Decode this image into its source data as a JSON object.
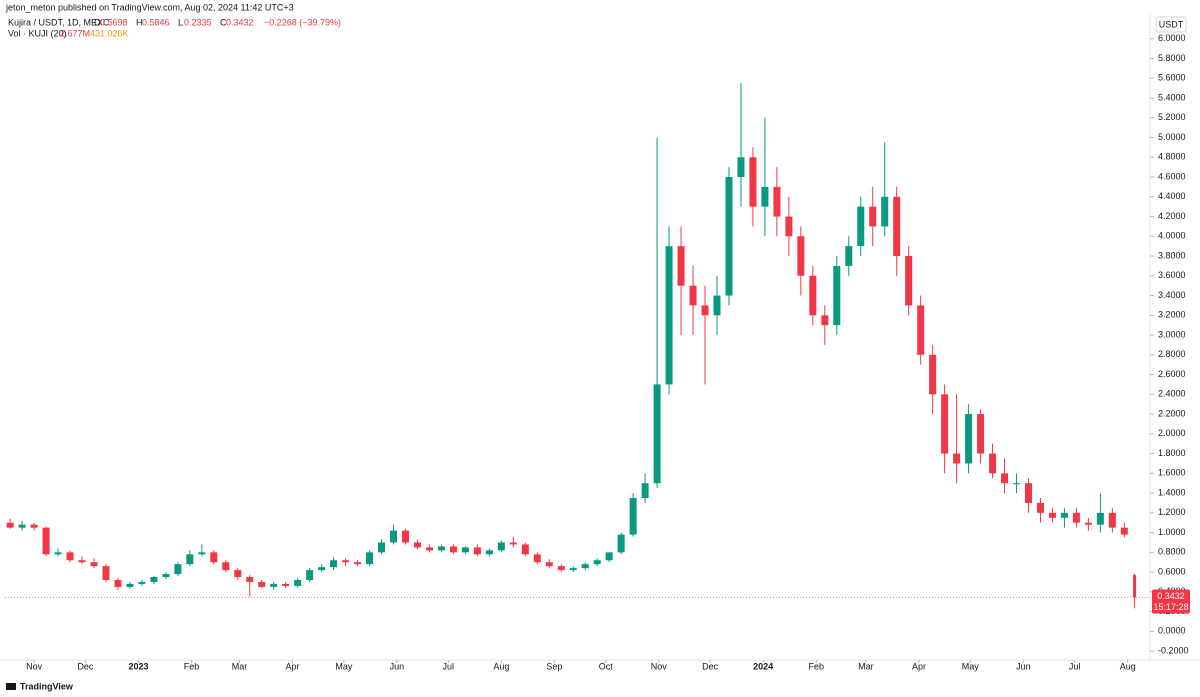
{
  "chart_data": {
    "type": "candlestick",
    "publisher": "jeton_meton published on TradingView.com, Aug 02, 2024 11:42 UTC+3",
    "title": "Kujira / USDT, 1D, MEXC",
    "ohlc_prefixes": [
      "O",
      "H",
      "L",
      "C"
    ],
    "change_label": "−0.2268 (−39.79%)",
    "volume_title": "Vol · KUJI (20)",
    "volume_labels": [
      "2.677M",
      "431.026K"
    ],
    "currency": "USDT",
    "countdown": "15:17:28",
    "brand": "TradingView",
    "up_color": "#089981",
    "down_color": "#f23645",
    "grid": false,
    "xlim": [
      0,
      669
    ],
    "ylim": [
      -0.29,
      6.21
    ],
    "xticks": [
      {
        "value": 17,
        "label": "Nov"
      },
      {
        "value": 47,
        "label": "Dec"
      },
      {
        "value": 78,
        "label": "2023"
      },
      {
        "value": 109,
        "label": "Feb"
      },
      {
        "value": 137,
        "label": "Mar"
      },
      {
        "value": 168,
        "label": "Apr"
      },
      {
        "value": 198,
        "label": "May"
      },
      {
        "value": 229,
        "label": "Jun"
      },
      {
        "value": 259,
        "label": "Jul"
      },
      {
        "value": 290,
        "label": "Aug"
      },
      {
        "value": 321,
        "label": "Sep"
      },
      {
        "value": 351,
        "label": "Oct"
      },
      {
        "value": 382,
        "label": "Nov"
      },
      {
        "value": 412,
        "label": "Dec"
      },
      {
        "value": 443,
        "label": "2024"
      },
      {
        "value": 474,
        "label": "Feb"
      },
      {
        "value": 503,
        "label": "Mar"
      },
      {
        "value": 534,
        "label": "Apr"
      },
      {
        "value": 564,
        "label": "May"
      },
      {
        "value": 595,
        "label": "Jun"
      },
      {
        "value": 625,
        "label": "Jul"
      },
      {
        "value": 656,
        "label": "Aug"
      }
    ],
    "yticks": [
      {
        "value": -0.2,
        "label": "-0.2000"
      },
      {
        "value": 0,
        "label": "0.0000"
      },
      {
        "value": 0.2,
        "label": "0.2000"
      },
      {
        "value": 0.4,
        "label": "0.4000"
      },
      {
        "value": 0.6,
        "label": "0.6000"
      },
      {
        "value": 0.8,
        "label": "0.8000"
      },
      {
        "value": 1.0,
        "label": "1.0000"
      },
      {
        "value": 1.2,
        "label": "1.2000"
      },
      {
        "value": 1.4,
        "label": "1.4000"
      },
      {
        "value": 1.6,
        "label": "1.6000"
      },
      {
        "value": 1.8,
        "label": "1.8000"
      },
      {
        "value": 2.0,
        "label": "2.0000"
      },
      {
        "value": 2.2,
        "label": "2.2000"
      },
      {
        "value": 2.4,
        "label": "2.4000"
      },
      {
        "value": 2.6,
        "label": "2.6000"
      },
      {
        "value": 2.8,
        "label": "2.8000"
      },
      {
        "value": 3.0,
        "label": "3.0000"
      },
      {
        "value": 3.2,
        "label": "3.2000"
      },
      {
        "value": 3.4,
        "label": "3.4000"
      },
      {
        "value": 3.6,
        "label": "3.6000"
      },
      {
        "value": 3.8,
        "label": "3.8000"
      },
      {
        "value": 4.0,
        "label": "4.0000"
      },
      {
        "value": 4.2,
        "label": "4.2000"
      },
      {
        "value": 4.4,
        "label": "4.4000"
      },
      {
        "value": 4.6,
        "label": "4.6000"
      },
      {
        "value": 4.8,
        "label": "4.8000"
      },
      {
        "value": 5.0,
        "label": "5.0000"
      },
      {
        "value": 5.2,
        "label": "5.2000"
      },
      {
        "value": 5.4,
        "label": "5.4000"
      },
      {
        "value": 5.6,
        "label": "5.6000"
      },
      {
        "value": 5.8,
        "label": "5.8000"
      },
      {
        "value": 6.0,
        "label": "6.0000"
      }
    ],
    "x": [
      3,
      10,
      17,
      24,
      31,
      38,
      45,
      52,
      59,
      66,
      73,
      80,
      87,
      94,
      101,
      108,
      115,
      122,
      129,
      136,
      143,
      150,
      157,
      164,
      171,
      178,
      185,
      192,
      199,
      206,
      213,
      220,
      227,
      234,
      241,
      248,
      255,
      262,
      269,
      276,
      283,
      290,
      297,
      304,
      311,
      318,
      325,
      332,
      339,
      346,
      353,
      360,
      367,
      374,
      381,
      388,
      395,
      402,
      409,
      416,
      423,
      430,
      437,
      444,
      451,
      458,
      465,
      472,
      479,
      486,
      493,
      500,
      507,
      514,
      521,
      528,
      535,
      542,
      549,
      556,
      563,
      570,
      577,
      584,
      591,
      598,
      605,
      612,
      619,
      626,
      633,
      640,
      647,
      654,
      660
    ],
    "open": [
      1.1,
      1.05,
      1.08,
      1.05,
      0.78,
      0.8,
      0.72,
      0.7,
      0.66,
      0.52,
      0.45,
      0.48,
      0.5,
      0.55,
      0.58,
      0.68,
      0.78,
      0.8,
      0.7,
      0.62,
      0.55,
      0.5,
      0.45,
      0.48,
      0.46,
      0.52,
      0.62,
      0.65,
      0.72,
      0.7,
      0.68,
      0.8,
      0.9,
      1.02,
      0.9,
      0.85,
      0.82,
      0.86,
      0.8,
      0.85,
      0.78,
      0.82,
      0.9,
      0.88,
      0.78,
      0.7,
      0.66,
      0.62,
      0.64,
      0.68,
      0.72,
      0.8,
      0.98,
      1.35,
      1.5,
      2.5,
      3.9,
      3.5,
      3.3,
      3.2,
      3.4,
      4.6,
      4.8,
      4.3,
      4.5,
      4.2,
      4.0,
      3.6,
      3.2,
      3.1,
      3.7,
      3.9,
      4.3,
      4.1,
      4.4,
      3.8,
      3.3,
      2.8,
      2.4,
      1.8,
      1.7,
      2.2,
      1.8,
      1.6,
      1.5,
      1.5,
      1.3,
      1.2,
      1.15,
      1.2,
      1.1,
      1.08,
      1.2,
      1.05,
      0.5698
    ],
    "high": [
      1.14,
      1.12,
      1.1,
      1.06,
      0.84,
      0.82,
      0.76,
      0.74,
      0.68,
      0.54,
      0.5,
      0.52,
      0.56,
      0.6,
      0.7,
      0.82,
      0.88,
      0.82,
      0.72,
      0.64,
      0.57,
      0.52,
      0.5,
      0.5,
      0.54,
      0.64,
      0.68,
      0.75,
      0.74,
      0.72,
      0.82,
      0.93,
      1.08,
      1.04,
      0.93,
      0.88,
      0.88,
      0.88,
      0.86,
      0.88,
      0.84,
      0.92,
      0.96,
      0.9,
      0.8,
      0.73,
      0.68,
      0.66,
      0.7,
      0.74,
      0.78,
      1.0,
      1.4,
      1.6,
      5.0,
      4.1,
      4.1,
      3.7,
      3.5,
      3.6,
      4.7,
      5.55,
      4.9,
      5.2,
      4.7,
      4.4,
      4.1,
      3.7,
      3.3,
      3.8,
      4.0,
      4.4,
      4.5,
      4.95,
      4.5,
      3.9,
      3.4,
      2.9,
      2.5,
      2.4,
      2.3,
      2.25,
      1.9,
      1.75,
      1.6,
      1.55,
      1.35,
      1.25,
      1.25,
      1.25,
      1.15,
      1.4,
      1.25,
      1.1,
      0.5846
    ],
    "low": [
      1.04,
      1.02,
      1.02,
      0.76,
      0.76,
      0.7,
      0.68,
      0.64,
      0.5,
      0.42,
      0.43,
      0.46,
      0.48,
      0.53,
      0.56,
      0.66,
      0.76,
      0.68,
      0.6,
      0.52,
      0.35,
      0.44,
      0.42,
      0.44,
      0.44,
      0.5,
      0.6,
      0.62,
      0.66,
      0.66,
      0.66,
      0.78,
      0.88,
      0.88,
      0.83,
      0.8,
      0.8,
      0.78,
      0.78,
      0.76,
      0.76,
      0.8,
      0.85,
      0.76,
      0.68,
      0.64,
      0.6,
      0.6,
      0.62,
      0.66,
      0.7,
      0.78,
      0.96,
      1.3,
      1.45,
      2.4,
      3.0,
      3.0,
      2.5,
      3.0,
      3.3,
      4.3,
      4.1,
      4.0,
      4.0,
      3.8,
      3.4,
      3.1,
      2.9,
      3.0,
      3.6,
      3.8,
      3.9,
      4.0,
      3.6,
      3.2,
      2.7,
      2.2,
      1.6,
      1.5,
      1.6,
      1.7,
      1.55,
      1.4,
      1.4,
      1.2,
      1.1,
      1.1,
      1.05,
      1.05,
      1.02,
      1.0,
      1.0,
      0.95,
      0.2335
    ],
    "close": [
      1.05,
      1.08,
      1.05,
      0.78,
      0.8,
      0.72,
      0.7,
      0.66,
      0.52,
      0.45,
      0.48,
      0.5,
      0.55,
      0.58,
      0.68,
      0.78,
      0.8,
      0.7,
      0.62,
      0.55,
      0.5,
      0.45,
      0.48,
      0.46,
      0.52,
      0.62,
      0.65,
      0.72,
      0.7,
      0.68,
      0.8,
      0.9,
      1.02,
      0.9,
      0.85,
      0.82,
      0.86,
      0.8,
      0.85,
      0.78,
      0.82,
      0.9,
      0.88,
      0.78,
      0.7,
      0.66,
      0.62,
      0.64,
      0.68,
      0.72,
      0.8,
      0.98,
      1.35,
      1.5,
      2.5,
      3.9,
      3.5,
      3.3,
      3.2,
      3.4,
      4.6,
      4.8,
      4.3,
      4.5,
      4.2,
      4.0,
      3.6,
      3.2,
      3.1,
      3.7,
      3.9,
      4.3,
      4.1,
      4.4,
      3.8,
      3.3,
      2.8,
      2.4,
      1.8,
      1.7,
      2.2,
      1.8,
      1.6,
      1.5,
      1.5,
      1.3,
      1.2,
      1.15,
      1.2,
      1.1,
      1.08,
      1.2,
      1.05,
      0.98,
      0.3432
    ]
  }
}
